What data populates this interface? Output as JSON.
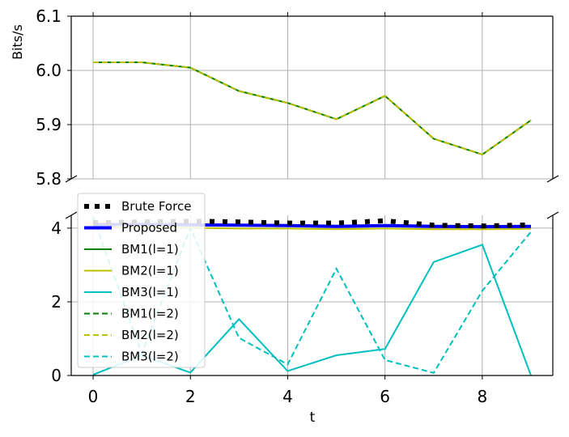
{
  "chart_data": {
    "type": "line",
    "xlabel": "t",
    "ylabel": "Bits/s",
    "x": [
      0,
      1,
      2,
      3,
      4,
      5,
      6,
      7,
      8,
      9
    ],
    "x_ticks": [
      0,
      2,
      4,
      6,
      8
    ],
    "xlim": [
      -0.45,
      9.45
    ],
    "grid": true,
    "legend_position": "left, over the axis break",
    "panels": [
      {
        "name": "top",
        "ylim": [
          5.8,
          6.1
        ],
        "y_ticks": [
          5.8,
          5.9,
          6.0,
          6.1
        ],
        "y_tick_labels": [
          "5.8",
          "5.9",
          "6.0",
          "6.1"
        ]
      },
      {
        "name": "bottom",
        "ylim": [
          0,
          4.35
        ],
        "y_ticks": [
          0,
          2,
          4
        ],
        "y_tick_labels": [
          "0",
          "2",
          "4"
        ]
      }
    ],
    "series": [
      {
        "name": "Brute Force",
        "color": "#000000",
        "style": "dotted-square",
        "values": [
          4.15,
          4.17,
          4.19,
          4.17,
          4.14,
          4.14,
          4.2,
          4.08,
          4.06,
          4.09
        ]
      },
      {
        "name": "Proposed",
        "color": "#0000ff",
        "style": "solid-thick",
        "values": [
          4.1,
          4.1,
          4.09,
          4.08,
          4.07,
          4.05,
          4.07,
          4.05,
          4.04,
          4.05
        ]
      },
      {
        "name": "BM1(l=1)",
        "color": "#008000",
        "style": "solid",
        "values": [
          6.015,
          6.015,
          6.005,
          5.962,
          5.94,
          5.91,
          5.953,
          5.874,
          5.845,
          5.908
        ]
      },
      {
        "name": "BM2(l=1)",
        "color": "#bfbf00",
        "style": "solid",
        "values": [
          4.03,
          4.02,
          4.01,
          3.99,
          3.99,
          3.97,
          3.99,
          3.97,
          3.97,
          3.98
        ]
      },
      {
        "name": "BM3(l=1)",
        "color": "#00bfbf",
        "style": "solid",
        "values": [
          0.02,
          0.55,
          0.08,
          1.53,
          0.12,
          0.55,
          0.72,
          3.08,
          3.55,
          0.0
        ]
      },
      {
        "name": "BM1(l=2)",
        "color": "#008000",
        "style": "dashed",
        "values": [
          6.015,
          6.015,
          6.005,
          5.962,
          5.94,
          5.91,
          5.953,
          5.874,
          5.845,
          5.908
        ]
      },
      {
        "name": "BM2(l=2)",
        "color": "#bfbf00",
        "style": "dashed",
        "values": [
          6.015,
          6.015,
          6.005,
          5.962,
          5.94,
          5.91,
          5.953,
          5.874,
          5.845,
          5.908
        ]
      },
      {
        "name": "BM3(l=2)",
        "color": "#00bfbf",
        "style": "dashed",
        "values": [
          4.3,
          0.6,
          4.0,
          1.02,
          0.3,
          2.9,
          0.42,
          0.07,
          2.3,
          3.9
        ]
      }
    ]
  }
}
